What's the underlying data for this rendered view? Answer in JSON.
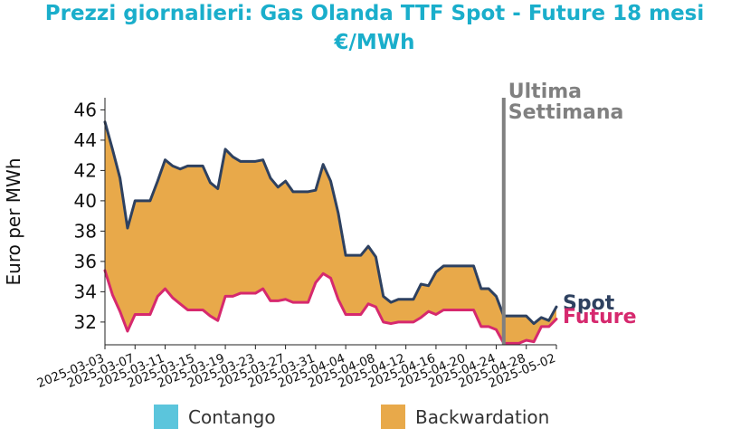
{
  "chart_data": {
    "type": "area",
    "title_line1": "Prezzi giornalieri: Gas Olanda TTF Spot - Future 18 mesi",
    "title_line2": "€/MWh",
    "ylabel": "Euro per MWh",
    "xlabel": "",
    "ylim": [
      30.5,
      46.8
    ],
    "yticks": [
      32,
      34,
      36,
      38,
      40,
      42,
      44,
      46
    ],
    "x_start": "2025-03-03",
    "x_end": "2025-05-02",
    "xtick_labels": [
      "2025-03-03",
      "2025-03-07",
      "2025-03-11",
      "2025-03-15",
      "2025-03-19",
      "2025-03-23",
      "2025-03-27",
      "2025-03-31",
      "2025-04-04",
      "2025-04-08",
      "2025-04-12",
      "2025-04-16",
      "2025-04-20",
      "2025-04-24",
      "2025-04-28",
      "2025-05-02"
    ],
    "series": [
      {
        "name": "Spot",
        "color": "#2e4160",
        "points": [
          [
            "2025-03-03",
            45.2
          ],
          [
            "2025-03-04",
            43.4
          ],
          [
            "2025-03-05",
            41.5
          ],
          [
            "2025-03-06",
            38.2
          ],
          [
            "2025-03-07",
            40.0
          ],
          [
            "2025-03-08",
            40.0
          ],
          [
            "2025-03-09",
            40.0
          ],
          [
            "2025-03-10",
            41.3
          ],
          [
            "2025-03-11",
            42.7
          ],
          [
            "2025-03-12",
            42.3
          ],
          [
            "2025-03-13",
            42.1
          ],
          [
            "2025-03-14",
            42.3
          ],
          [
            "2025-03-15",
            42.3
          ],
          [
            "2025-03-16",
            42.3
          ],
          [
            "2025-03-17",
            41.2
          ],
          [
            "2025-03-18",
            40.8
          ],
          [
            "2025-03-19",
            43.4
          ],
          [
            "2025-03-20",
            42.9
          ],
          [
            "2025-03-21",
            42.6
          ],
          [
            "2025-03-22",
            42.6
          ],
          [
            "2025-03-23",
            42.6
          ],
          [
            "2025-03-24",
            42.7
          ],
          [
            "2025-03-25",
            41.5
          ],
          [
            "2025-03-26",
            40.9
          ],
          [
            "2025-03-27",
            41.3
          ],
          [
            "2025-03-28",
            40.6
          ],
          [
            "2025-03-29",
            40.6
          ],
          [
            "2025-03-30",
            40.6
          ],
          [
            "2025-03-31",
            40.7
          ],
          [
            "2025-04-01",
            42.4
          ],
          [
            "2025-04-02",
            41.3
          ],
          [
            "2025-04-03",
            39.2
          ],
          [
            "2025-04-04",
            36.4
          ],
          [
            "2025-04-05",
            36.4
          ],
          [
            "2025-04-06",
            36.4
          ],
          [
            "2025-04-07",
            37.0
          ],
          [
            "2025-04-08",
            36.3
          ],
          [
            "2025-04-09",
            33.7
          ],
          [
            "2025-04-10",
            33.3
          ],
          [
            "2025-04-11",
            33.5
          ],
          [
            "2025-04-12",
            33.5
          ],
          [
            "2025-04-13",
            33.5
          ],
          [
            "2025-04-14",
            34.5
          ],
          [
            "2025-04-15",
            34.4
          ],
          [
            "2025-04-16",
            35.3
          ],
          [
            "2025-04-17",
            35.7
          ],
          [
            "2025-04-18",
            35.7
          ],
          [
            "2025-04-19",
            35.7
          ],
          [
            "2025-04-20",
            35.7
          ],
          [
            "2025-04-21",
            35.7
          ],
          [
            "2025-04-22",
            34.2
          ],
          [
            "2025-04-23",
            34.2
          ],
          [
            "2025-04-24",
            33.7
          ],
          [
            "2025-04-25",
            32.4
          ],
          [
            "2025-04-26",
            32.4
          ],
          [
            "2025-04-27",
            32.4
          ],
          [
            "2025-04-28",
            32.4
          ],
          [
            "2025-04-29",
            31.9
          ],
          [
            "2025-04-30",
            32.3
          ],
          [
            "2025-05-01",
            32.1
          ],
          [
            "2025-05-02",
            33.0
          ]
        ]
      },
      {
        "name": "Future",
        "color": "#d6296e",
        "points": [
          [
            "2025-03-03",
            35.4
          ],
          [
            "2025-03-04",
            33.8
          ],
          [
            "2025-03-05",
            32.7
          ],
          [
            "2025-03-06",
            31.4
          ],
          [
            "2025-03-07",
            32.5
          ],
          [
            "2025-03-08",
            32.5
          ],
          [
            "2025-03-09",
            32.5
          ],
          [
            "2025-03-10",
            33.7
          ],
          [
            "2025-03-11",
            34.2
          ],
          [
            "2025-03-12",
            33.6
          ],
          [
            "2025-03-13",
            33.2
          ],
          [
            "2025-03-14",
            32.8
          ],
          [
            "2025-03-15",
            32.8
          ],
          [
            "2025-03-16",
            32.8
          ],
          [
            "2025-03-17",
            32.4
          ],
          [
            "2025-03-18",
            32.1
          ],
          [
            "2025-03-19",
            33.7
          ],
          [
            "2025-03-20",
            33.7
          ],
          [
            "2025-03-21",
            33.9
          ],
          [
            "2025-03-22",
            33.9
          ],
          [
            "2025-03-23",
            33.9
          ],
          [
            "2025-03-24",
            34.2
          ],
          [
            "2025-03-25",
            33.4
          ],
          [
            "2025-03-26",
            33.4
          ],
          [
            "2025-03-27",
            33.5
          ],
          [
            "2025-03-28",
            33.3
          ],
          [
            "2025-03-29",
            33.3
          ],
          [
            "2025-03-30",
            33.3
          ],
          [
            "2025-03-31",
            34.6
          ],
          [
            "2025-04-01",
            35.2
          ],
          [
            "2025-04-02",
            34.9
          ],
          [
            "2025-04-03",
            33.5
          ],
          [
            "2025-04-04",
            32.5
          ],
          [
            "2025-04-05",
            32.5
          ],
          [
            "2025-04-06",
            32.5
          ],
          [
            "2025-04-07",
            33.2
          ],
          [
            "2025-04-08",
            33.0
          ],
          [
            "2025-04-09",
            32.0
          ],
          [
            "2025-04-10",
            31.9
          ],
          [
            "2025-04-11",
            32.0
          ],
          [
            "2025-04-12",
            32.0
          ],
          [
            "2025-04-13",
            32.0
          ],
          [
            "2025-04-14",
            32.3
          ],
          [
            "2025-04-15",
            32.7
          ],
          [
            "2025-04-16",
            32.5
          ],
          [
            "2025-04-17",
            32.8
          ],
          [
            "2025-04-18",
            32.8
          ],
          [
            "2025-04-19",
            32.8
          ],
          [
            "2025-04-20",
            32.8
          ],
          [
            "2025-04-21",
            32.8
          ],
          [
            "2025-04-22",
            31.7
          ],
          [
            "2025-04-23",
            31.7
          ],
          [
            "2025-04-24",
            31.5
          ],
          [
            "2025-04-25",
            30.6
          ],
          [
            "2025-04-26",
            30.6
          ],
          [
            "2025-04-27",
            30.6
          ],
          [
            "2025-04-28",
            30.8
          ],
          [
            "2025-04-29",
            30.7
          ],
          [
            "2025-04-30",
            31.7
          ],
          [
            "2025-05-01",
            31.7
          ],
          [
            "2025-05-02",
            32.2
          ]
        ]
      }
    ],
    "vertical_line": {
      "date": "2025-04-25",
      "label_line1": "Ultima",
      "label_line2": "Settimana",
      "color": "#808080"
    },
    "end_labels": {
      "spot": "Spot",
      "future": "Future"
    },
    "legend": {
      "placement": "bottom",
      "items": [
        {
          "label": "Contango",
          "color": "#5bc5dc"
        },
        {
          "label": "Backwardation",
          "color": "#e8a94a"
        }
      ]
    },
    "colors": {
      "title": "#1aaecb",
      "axis": "#222222"
    }
  }
}
